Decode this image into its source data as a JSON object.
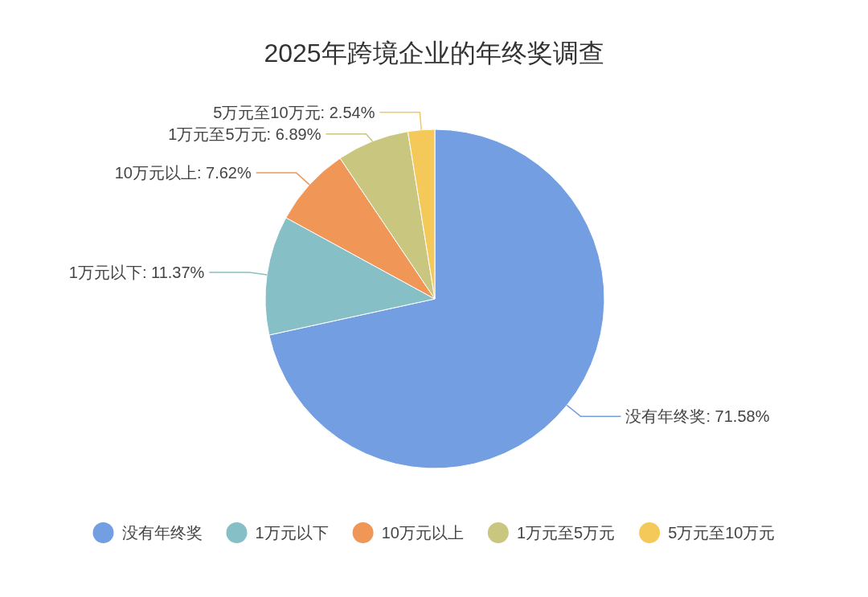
{
  "chart_data": {
    "type": "pie",
    "title": "2025年跨境企业的年终奖调查",
    "categories": [
      "没有年终奖",
      "1万元以下",
      "10万元以上",
      "1万元至5万元",
      "5万元至10万元"
    ],
    "values": [
      71.58,
      11.37,
      7.62,
      6.89,
      2.54
    ],
    "colors": [
      "#739ee2",
      "#86bfc6",
      "#f09656",
      "#c9c77f",
      "#f5c85a"
    ],
    "value_labels": [
      ": 71.58%",
      ": 11.37%",
      ": 7.62%",
      ": 6.89%",
      ": 2.54%"
    ],
    "legend": "bottom"
  }
}
